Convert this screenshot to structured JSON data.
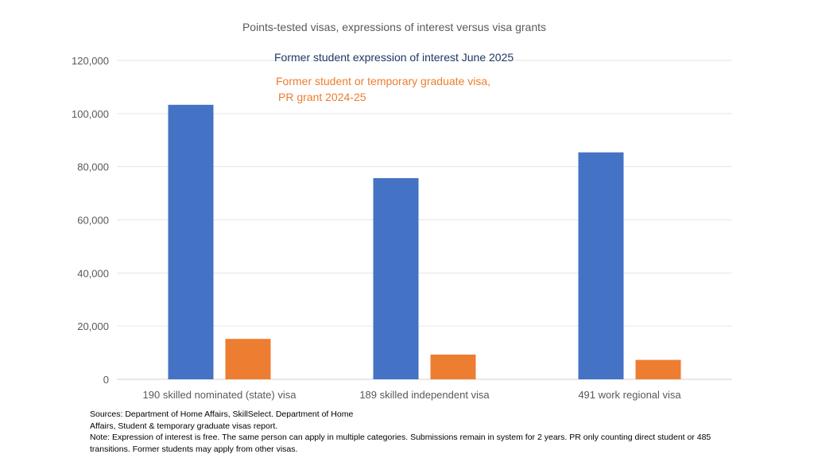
{
  "chart_data": {
    "type": "bar",
    "title": "Points-tested visas, expressions of interest versus visa grants",
    "categories": [
      "190 skilled nominated (state) visa",
      "189 skilled independent visa",
      "491 work regional visa"
    ],
    "series": [
      {
        "name": "Former student expression of interest June 2025",
        "color": "#4472C4",
        "values": [
          103300,
          75700,
          85400
        ]
      },
      {
        "name": "Former student or temporary graduate visa, PR grant 2024-25",
        "color": "#ED7D31",
        "values": [
          15200,
          9300,
          7300
        ]
      }
    ],
    "ylim": [
      0,
      120000
    ],
    "yticks": [
      "0",
      "20,000",
      "40,000",
      "60,000",
      "80,000",
      "100,000",
      "120,000"
    ],
    "grid": true,
    "legend_position": "top-center",
    "legend_lines": [
      [
        "Former student expression of interest June 2025"
      ],
      [
        "Former student or temporary graduate visa,",
        "PR grant 2024-25"
      ]
    ],
    "legend_colors": [
      "#1F3864",
      "#ED7D31"
    ]
  },
  "footnotes": {
    "sources_line1": "Sources: Department of Home Affairs, SkillSelect. Department of Home",
    "sources_line2": "Affairs, Student & temporary graduate visas report.",
    "note_line1": "Note: Expression of interest is free. The same person can apply in multiple categories. Submissions remain in system for 2 years. PR only counting direct student or 485",
    "note_line2": "transitions. Former students may apply from other visas."
  }
}
